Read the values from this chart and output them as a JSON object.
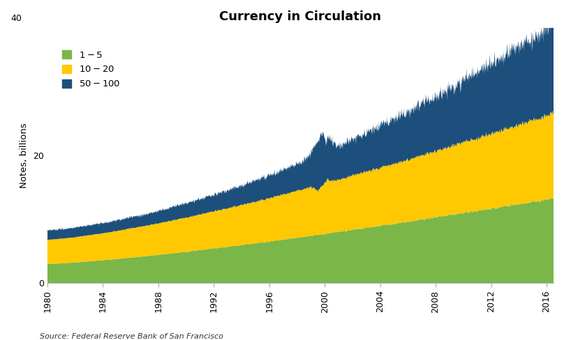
{
  "title": "Currency in Circulation",
  "ylabel": "Notes, billions",
  "source": "Source: Federal Reserve Bank of San Francisco",
  "colors": {
    "green": "#7ab648",
    "yellow": "#ffc800",
    "blue": "#1d4f7c"
  },
  "legend_labels": [
    "$1 - $5",
    "$10 - $20",
    "$50 - $100"
  ],
  "year_start": 1980,
  "year_end": 2017,
  "ylim": [
    0,
    40
  ],
  "yticks": [
    0,
    20
  ],
  "ytick_extra": 40,
  "xticks": [
    1980,
    1984,
    1988,
    1992,
    1996,
    2000,
    2004,
    2008,
    2012,
    2016
  ],
  "background_color": "#ffffff",
  "title_fontsize": 13,
  "label_fontsize": 9.5,
  "tick_fontsize": 9
}
